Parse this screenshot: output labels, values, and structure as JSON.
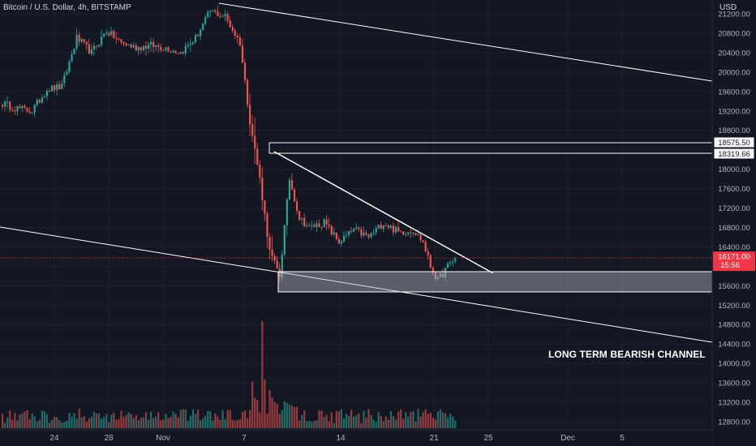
{
  "header": {
    "title": "Bitcoin / U.S. Dollar, 4h, BITSTAMP",
    "currency": "USD"
  },
  "annotation": "LONG TERM BEARISH CHANNEL",
  "price_tag": {
    "value": "16171.00",
    "countdown": "15:56",
    "color": "#f23645"
  },
  "level_tags": [
    {
      "value": "18575.50"
    },
    {
      "value": "18319.66"
    }
  ],
  "colors": {
    "background": "#131722",
    "up": "#26a69a",
    "down": "#ef5350",
    "lines": "#ffffff"
  },
  "chart_data": {
    "type": "candlestick",
    "symbol": "BTCUSD",
    "interval": "4h",
    "exchange": "BITSTAMP",
    "y_ticks": [
      12800,
      13200,
      13600,
      14000,
      14400,
      14800,
      15200,
      15600,
      16000,
      16400,
      16800,
      17200,
      17600,
      18000,
      18400,
      18800,
      19200,
      19600,
      20000,
      20400,
      20800,
      21200
    ],
    "y_tick_labels": [
      "12800.00",
      "13200.00",
      "13600.00",
      "14000.00",
      "14400.00",
      "14800.00",
      "15200.00",
      "15600.00",
      "16000.00",
      "16400.00",
      "16800.00",
      "17200.00",
      "17600.00",
      "18000.00",
      "18400.00",
      "18800.00",
      "19200.00",
      "19600.00",
      "20000.00",
      "20400.00",
      "20800.00",
      "21200.00"
    ],
    "x_tick_labels": [
      "24",
      "28",
      "Nov",
      "7",
      "14",
      "21",
      "25",
      "Dec",
      "5"
    ],
    "ylim": [
      12650,
      21350
    ],
    "last_price": 16171.0,
    "horizontal_levels": [
      18575.5,
      18319.66
    ],
    "support_zone": [
      15550,
      15950
    ],
    "keypoints": [
      [
        0,
        19350
      ],
      [
        6,
        19250
      ],
      [
        12,
        19200
      ],
      [
        18,
        19650
      ],
      [
        24,
        19700
      ],
      [
        30,
        20700
      ],
      [
        36,
        20400
      ],
      [
        42,
        20850
      ],
      [
        48,
        20600
      ],
      [
        54,
        20500
      ],
      [
        60,
        20550
      ],
      [
        66,
        20500
      ],
      [
        72,
        20400
      ],
      [
        78,
        20700
      ],
      [
        84,
        21250
      ],
      [
        90,
        21150
      ],
      [
        96,
        20600
      ],
      [
        100,
        19000
      ],
      [
        104,
        17800
      ],
      [
        108,
        16300
      ],
      [
        112,
        15800
      ],
      [
        116,
        17800
      ],
      [
        120,
        17000
      ],
      [
        124,
        16800
      ],
      [
        130,
        16900
      ],
      [
        136,
        16500
      ],
      [
        142,
        16750
      ],
      [
        148,
        16600
      ],
      [
        154,
        16900
      ],
      [
        160,
        16700
      ],
      [
        166,
        16750
      ],
      [
        170,
        16500
      ],
      [
        173,
        16000
      ],
      [
        176,
        15700
      ],
      [
        180,
        16000
      ],
      [
        183,
        16171
      ]
    ],
    "volume": {
      "baseline": "low",
      "spike_index": 105
    }
  }
}
